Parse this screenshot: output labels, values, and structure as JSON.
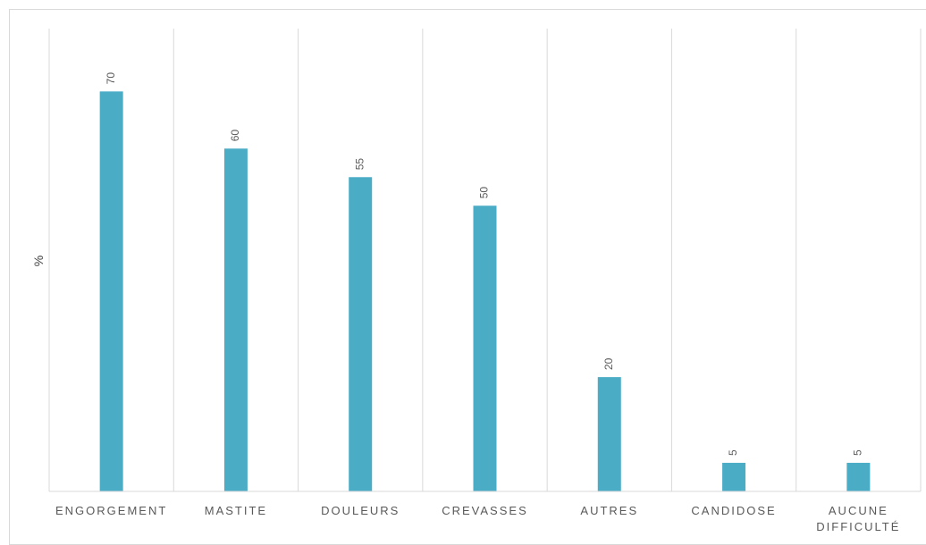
{
  "chart_data": {
    "type": "bar",
    "title": "",
    "xlabel": "",
    "ylabel": "%",
    "categories": [
      "ENGORGEMENT",
      "MASTITE",
      "DOULEURS",
      "CREVASSES",
      "AUTRES",
      "CANDIDOSE",
      "AUCUNE DIFFICULTÉ"
    ],
    "category_lines": [
      [
        "ENGORGEMENT"
      ],
      [
        "MASTITE"
      ],
      [
        "DOULEURS"
      ],
      [
        "CREVASSES"
      ],
      [
        "AUTRES"
      ],
      [
        "CANDIDOSE"
      ],
      [
        "AUCUNE",
        "DIFFICULTÉ"
      ]
    ],
    "values": [
      70,
      60,
      55,
      50,
      20,
      5,
      5
    ],
    "data_labels": [
      "70",
      "60",
      "55",
      "50",
      "20",
      "5",
      "5"
    ],
    "ylim": [
      0,
      81
    ],
    "grid": "vertical category separators",
    "legend": "none",
    "bar_color": "#4bacc6",
    "grid_color": "#d9d9d9"
  }
}
